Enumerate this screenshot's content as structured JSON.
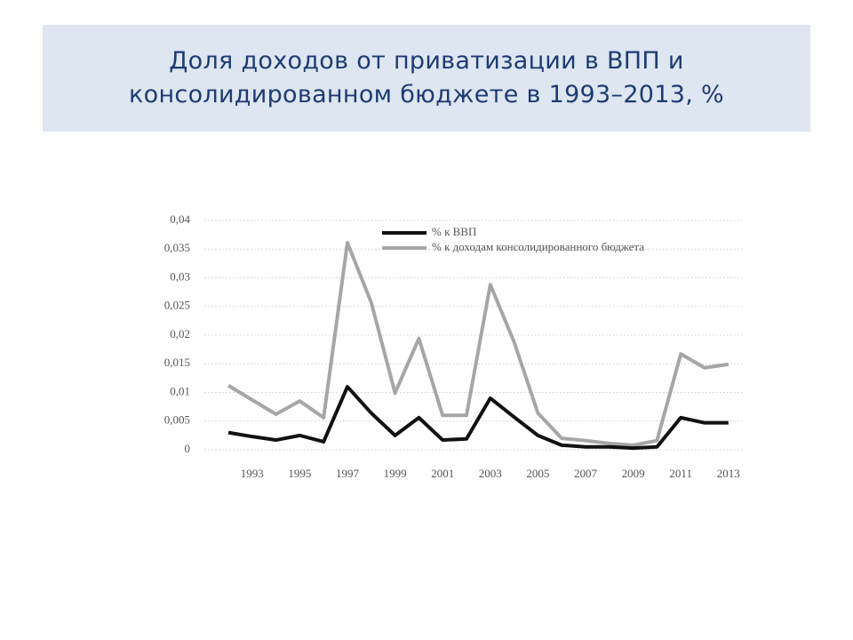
{
  "chart_data": {
    "type": "line",
    "title": "Доля доходов от приватизации в ВПП и консолидированном бюджете в 1993–2013, %",
    "categories": [
      null,
      "1993",
      null,
      "1995",
      null,
      "1997",
      null,
      "1999",
      null,
      "2001",
      null,
      "2003",
      null,
      "2005",
      null,
      "2007",
      null,
      "2009",
      null,
      "2011",
      null,
      "2013"
    ],
    "series": [
      {
        "name": "% к ВВП",
        "color": "#111111",
        "values": [
          0.003,
          0.0023,
          0.0017,
          0.0025,
          0.0014,
          0.011,
          0.0064,
          0.0025,
          0.0056,
          0.0017,
          0.0019,
          0.009,
          0.0057,
          0.0025,
          0.0008,
          0.0005,
          0.0005,
          0.0003,
          0.0005,
          0.0056,
          0.0047,
          0.0047
        ]
      },
      {
        "name": "% к доходам консолидированного бюджета",
        "color": "#a6a6a6",
        "values": [
          0.0112,
          0.0087,
          0.0062,
          0.0085,
          0.0056,
          0.0361,
          0.0257,
          0.0099,
          0.0194,
          0.006,
          0.006,
          0.0288,
          0.0188,
          0.0064,
          0.002,
          0.0016,
          0.0011,
          0.0008,
          0.0016,
          0.0167,
          0.0143,
          0.0149
        ]
      }
    ],
    "ylim": [
      0,
      0.04
    ],
    "yticks": [
      0,
      {
        "value": 0.005,
        "label": "0,005"
      },
      {
        "value": 0.01,
        "label": "0,01"
      },
      {
        "value": 0.015,
        "label": "0,015"
      },
      {
        "value": 0.02,
        "label": "0,02"
      },
      {
        "value": 0.025,
        "label": "0,025"
      },
      {
        "value": 0.03,
        "label": "0,03"
      },
      {
        "value": 0.035,
        "label": "0,035"
      },
      {
        "value": 0.04,
        "label": "0,04"
      }
    ],
    "grid": true,
    "legend": "top-right"
  }
}
